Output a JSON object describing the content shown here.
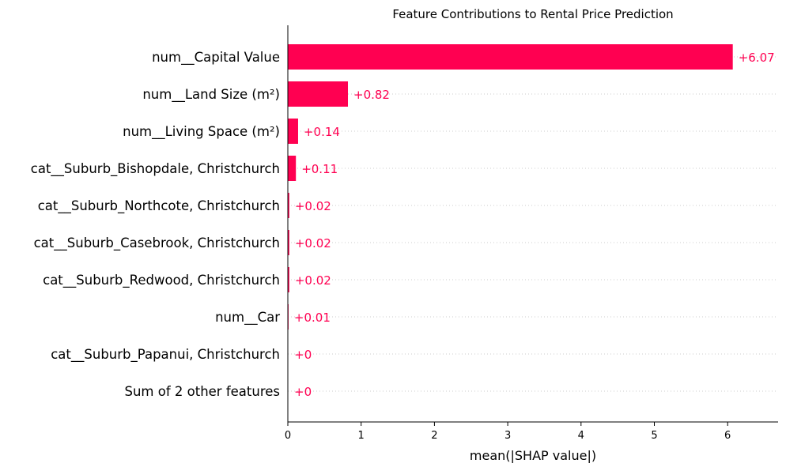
{
  "chart_data": {
    "type": "bar",
    "orientation": "horizontal",
    "title": "Feature Contributions to Rental Price Prediction",
    "xlabel": "mean(|SHAP value|)",
    "ylabel": "",
    "categories": [
      "num__Capital Value",
      "num__Land Size (m²)",
      "num__Living Space (m²)",
      "cat__Suburb_Bishopdale, Christchurch",
      "cat__Suburb_Northcote, Christchurch",
      "cat__Suburb_Casebrook, Christchurch",
      "cat__Suburb_Redwood, Christchurch",
      "num__Car",
      "cat__Suburb_Papanui, Christchurch",
      "Sum of 2 other features"
    ],
    "values": [
      6.07,
      0.82,
      0.14,
      0.11,
      0.02,
      0.02,
      0.02,
      0.01,
      0.002,
      0.0
    ],
    "value_labels": [
      "+6.07",
      "+0.82",
      "+0.14",
      "+0.11",
      "+0.02",
      "+0.02",
      "+0.02",
      "+0.01",
      "+0",
      "+0"
    ],
    "xlim": [
      0,
      6.68
    ],
    "xticks": [
      0,
      1,
      2,
      3,
      4,
      5,
      6
    ],
    "bar_color": "#ff0051",
    "gridlines": "dotted horizontal per row",
    "legend": "none"
  }
}
